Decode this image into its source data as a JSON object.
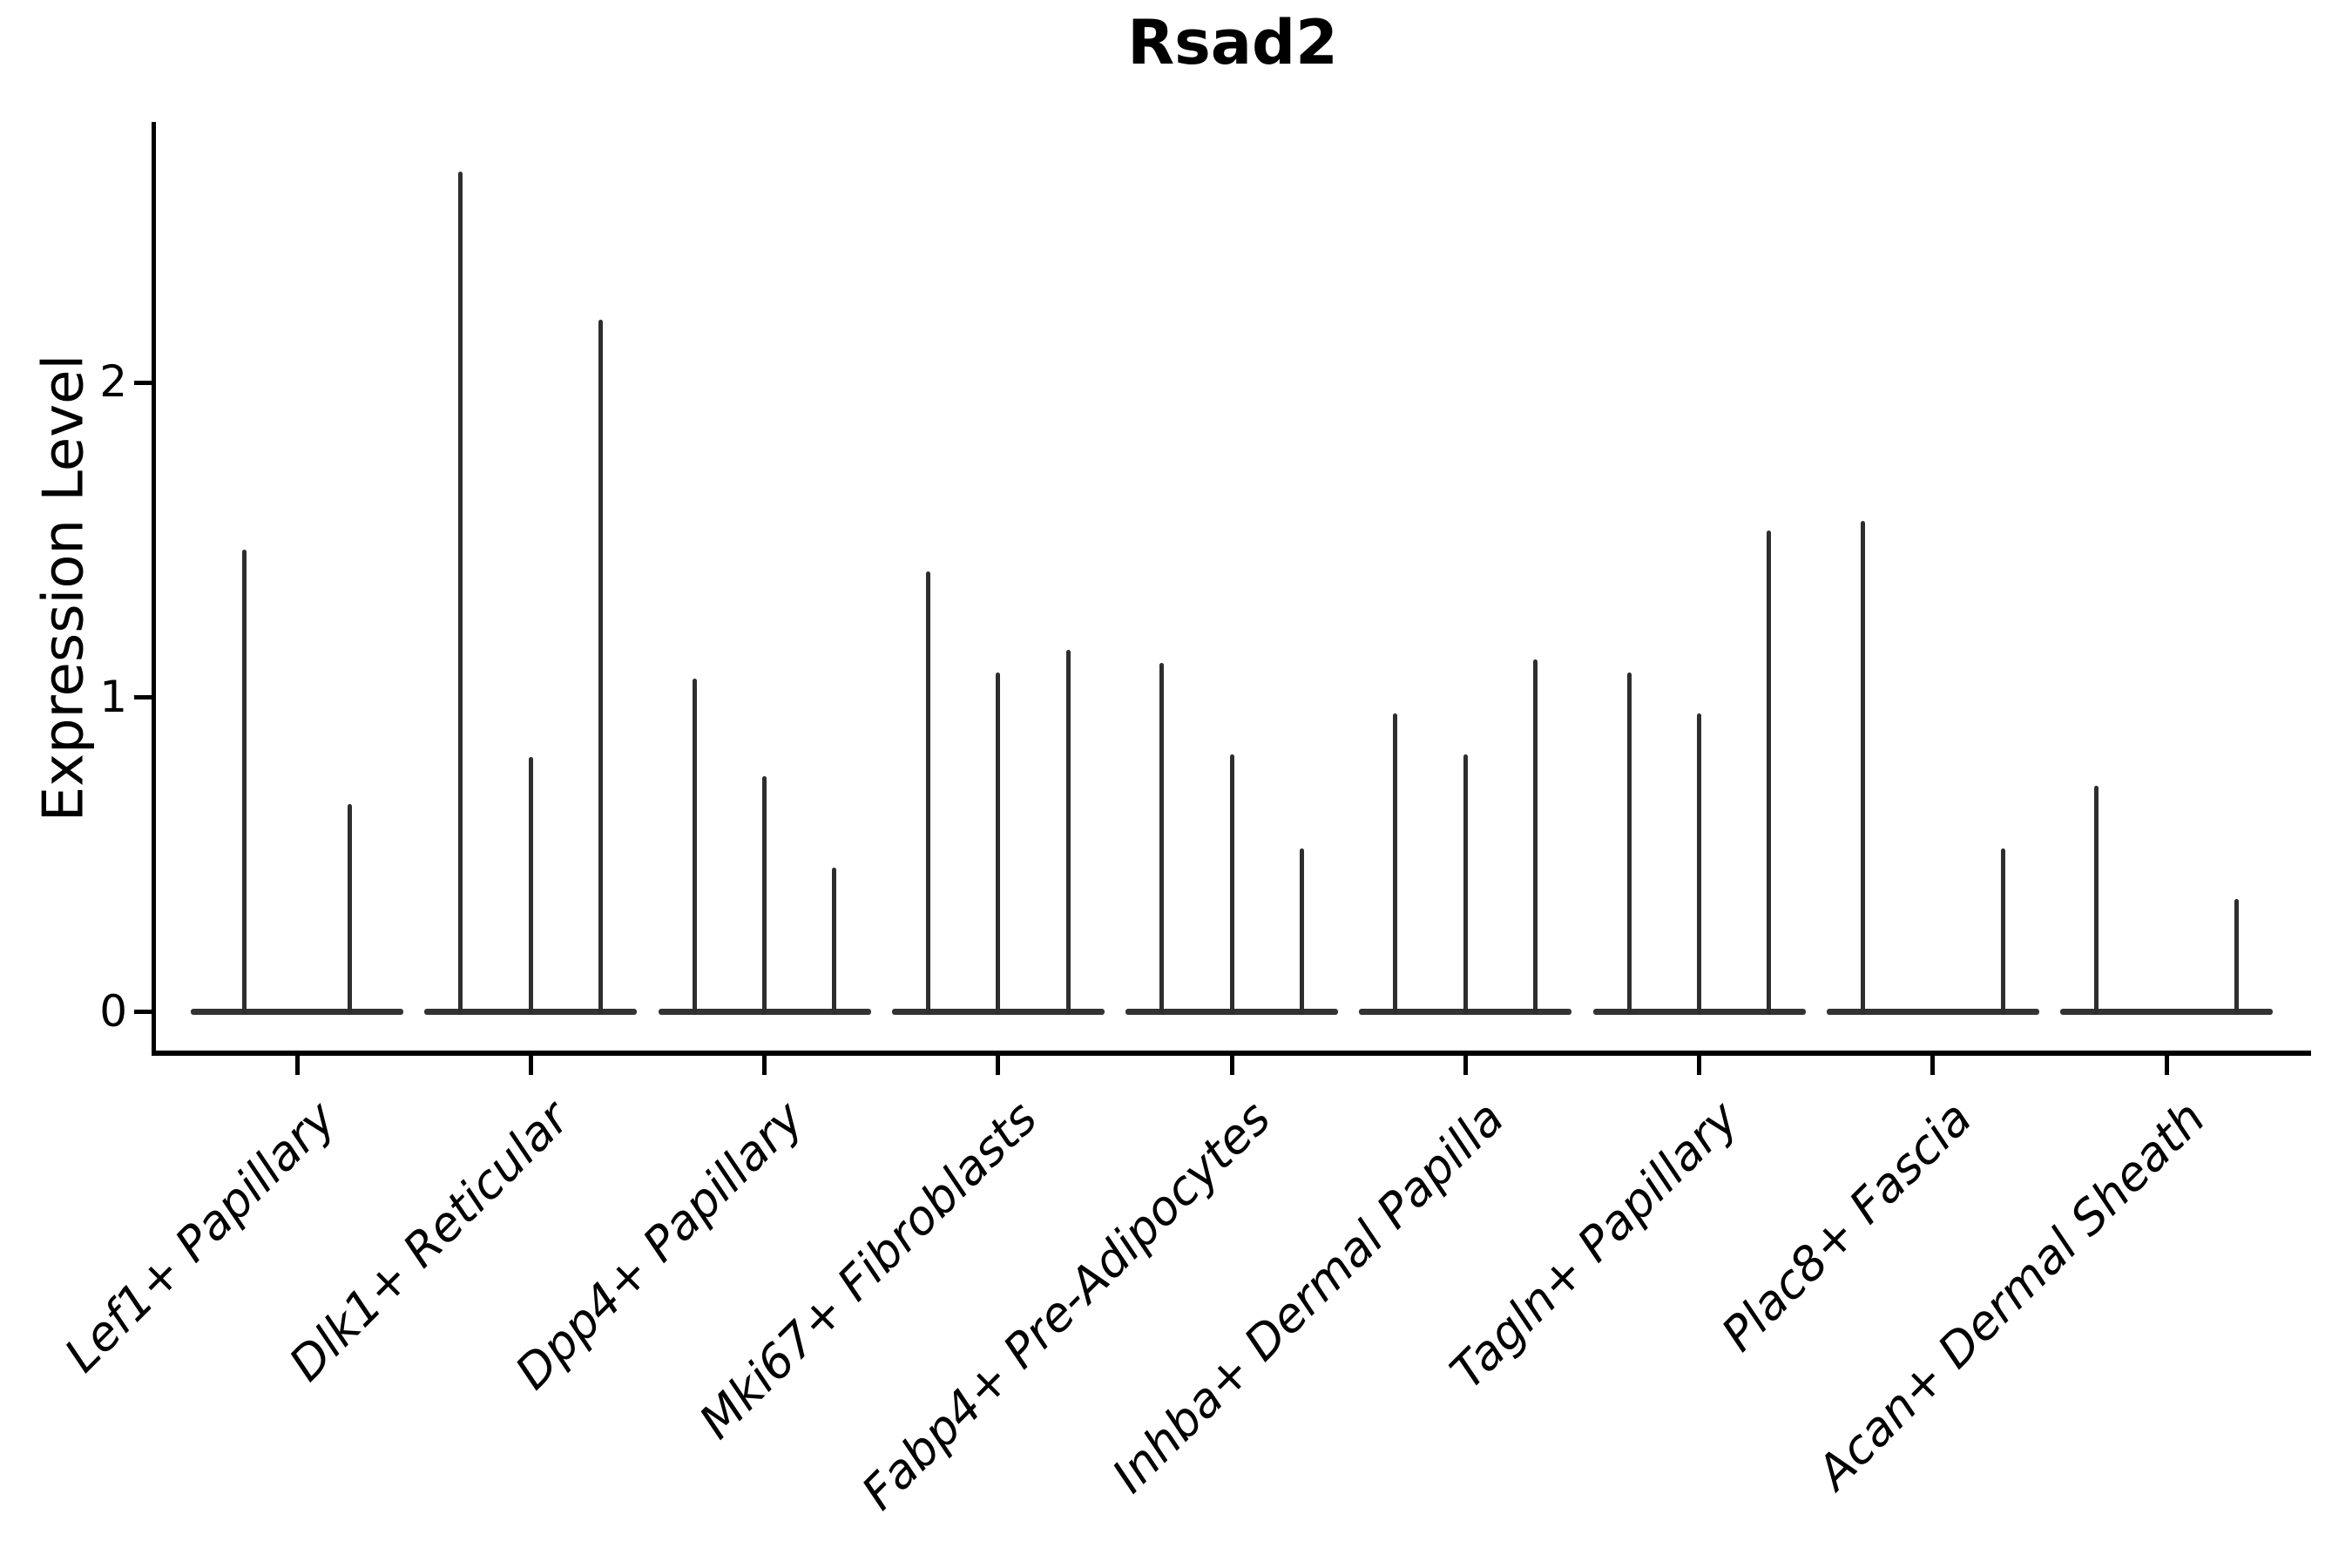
{
  "figure": {
    "background": "#ffffff"
  },
  "chart_data": {
    "type": "violin",
    "title": "Rsad2",
    "xlabel": "",
    "ylabel": "Expression Level",
    "yticks": [
      0,
      1,
      2
    ],
    "ylim": [
      -0.13,
      2.83
    ],
    "grid": false,
    "legend": null,
    "categories": [
      "Lef1+ Papillary",
      "Dlk1+ Reticular",
      "Dpp4+ Papillary",
      "Mki67+ Fibroblasts",
      "Fabp4+ Pre-Adipocytes",
      "Inhba+ Dermal Papilla",
      "Tagln+ Papillary",
      "Plac8+ Fascia",
      "Acan+ Dermal Sheath"
    ],
    "groups": [
      {
        "label": "Lef1+ Papillary",
        "violins": [
          {
            "offset": -0.225,
            "max": 1.47
          },
          {
            "offset": 0.225,
            "max": 0.66
          }
        ]
      },
      {
        "label": "Dlk1+ Reticular",
        "violins": [
          {
            "offset": -0.3,
            "max": 2.67
          },
          {
            "offset": 0,
            "max": 0.81
          },
          {
            "offset": 0.3,
            "max": 2.2
          }
        ]
      },
      {
        "label": "Dpp4+ Papillary",
        "violins": [
          {
            "offset": -0.3,
            "max": 1.06
          },
          {
            "offset": 0,
            "max": 0.75
          },
          {
            "offset": 0.3,
            "max": 0.46
          }
        ]
      },
      {
        "label": "Mki67+ Fibroblasts",
        "violins": [
          {
            "offset": -0.3,
            "max": 1.4
          },
          {
            "offset": 0,
            "max": 1.08
          },
          {
            "offset": 0.3,
            "max": 1.15
          }
        ]
      },
      {
        "label": "Fabp4+ Pre-Adipocytes",
        "violins": [
          {
            "offset": -0.3,
            "max": 1.11
          },
          {
            "offset": 0,
            "max": 0.82
          },
          {
            "offset": 0.3,
            "max": 0.52
          }
        ]
      },
      {
        "label": "Inhba+ Dermal Papilla",
        "violins": [
          {
            "offset": -0.3,
            "max": 0.95
          },
          {
            "offset": 0,
            "max": 0.82
          },
          {
            "offset": 0.3,
            "max": 1.12
          }
        ]
      },
      {
        "label": "Tagln+ Papillary",
        "violins": [
          {
            "offset": -0.3,
            "max": 1.08
          },
          {
            "offset": 0,
            "max": 0.95
          },
          {
            "offset": 0.3,
            "max": 1.53
          }
        ]
      },
      {
        "label": "Plac8+ Fascia",
        "violins": [
          {
            "offset": -0.3,
            "max": 1.56
          },
          {
            "offset": 0,
            "max": 0.0
          },
          {
            "offset": 0.3,
            "max": 0.52
          }
        ]
      },
      {
        "label": "Acan+ Dermal Sheath",
        "violins": [
          {
            "offset": -0.3,
            "max": 0.72
          },
          {
            "offset": 0,
            "max": 0.0
          },
          {
            "offset": 0.3,
            "max": 0.36
          }
        ]
      }
    ],
    "colors": {
      "violin_line": "#2e2e2e",
      "baseline": "#333333",
      "axis": "#000000",
      "text": "#000000"
    }
  }
}
